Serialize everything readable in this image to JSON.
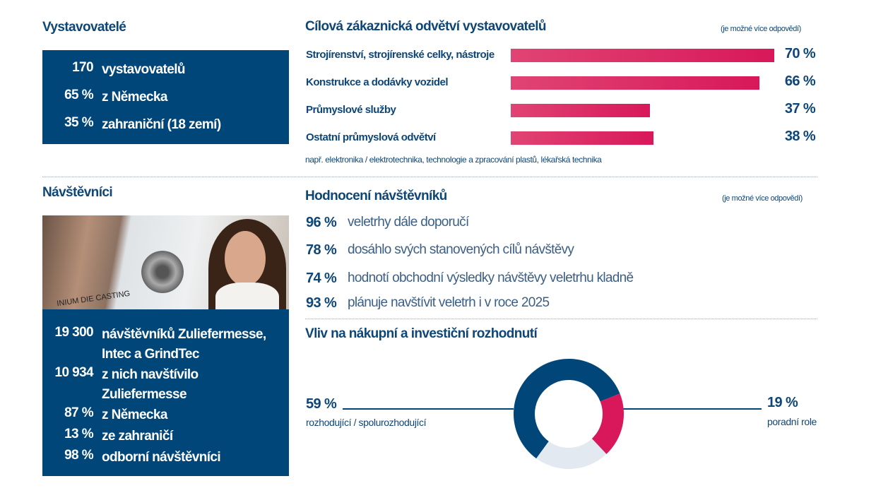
{
  "exhibitors": {
    "title": "Vystavovatelé",
    "rows": [
      {
        "num": "170",
        "text": "vystavovatelů"
      },
      {
        "num": "65 %",
        "text": "z Německa"
      },
      {
        "num": "35 %",
        "text": "zahraniční (18 zemí)"
      }
    ]
  },
  "visitors": {
    "title": "Návštěvníci",
    "photo_caption": "INIUM DIE CASTING",
    "rows": [
      {
        "num": "19 300",
        "text": "návštěvníků Zuliefermesse,",
        "text2": "Intec a GrindTec"
      },
      {
        "num": "10 934",
        "text": "z nich navštívilo",
        "text2": "Zuliefermesse"
      },
      {
        "num": "87 %",
        "text": "z Německa"
      },
      {
        "num": "13 %",
        "text": "ze zahraničí"
      },
      {
        "num": "98 %",
        "text": "odborní návštěvníci"
      }
    ]
  },
  "ratings": {
    "title": "Hodnocení návštěvníků",
    "note": "(je možné více odpovědí)",
    "items": [
      {
        "pct": "96 %",
        "text": "veletrhy dále doporučí"
      },
      {
        "pct": "78 %",
        "text": "dosáhlo svých stanovených cílů návštěvy"
      },
      {
        "pct": "74 %",
        "text": "hodnotí obchodní výsledky návštěvy veletrhu kladně"
      },
      {
        "pct": "93 %",
        "text": "plánuje navštívit veletrh i v roce 2025"
      }
    ]
  },
  "colors": {
    "navy": "#004678",
    "pink": "#d8185a",
    "light": "#e3e9f1"
  },
  "chart_data": [
    {
      "type": "bar",
      "orientation": "horizontal",
      "title": "Cílová zákaznická odvětví vystavovatelů",
      "note": "(je možné více odpovědí)",
      "categories": [
        "Strojírenství, strojírenské celky, nástroje",
        "Konstrukce a dodávky vozidel",
        "Průmyslové služby",
        "Ostatní průmyslová odvětví"
      ],
      "values": [
        70,
        66,
        37,
        38
      ],
      "labels": [
        "70 %",
        "66 %",
        "37 %",
        "38 %"
      ],
      "footnote": "např. elektronika / elektrotechnika, technologie a zpracování plastů, lékařská technika",
      "grid": false
    },
    {
      "type": "pie",
      "donut": true,
      "title": "Vliv na nákupní a investiční rozhodnutí",
      "slices": [
        {
          "value": 59,
          "label": "59 %",
          "name": "rozhodující / spolurozhodující",
          "color": "#004678"
        },
        {
          "value": 19,
          "label": "19 %",
          "name": "poradní role",
          "color": "#d8185a"
        },
        {
          "value": 22,
          "color": "#e3e9f1"
        }
      ]
    }
  ]
}
